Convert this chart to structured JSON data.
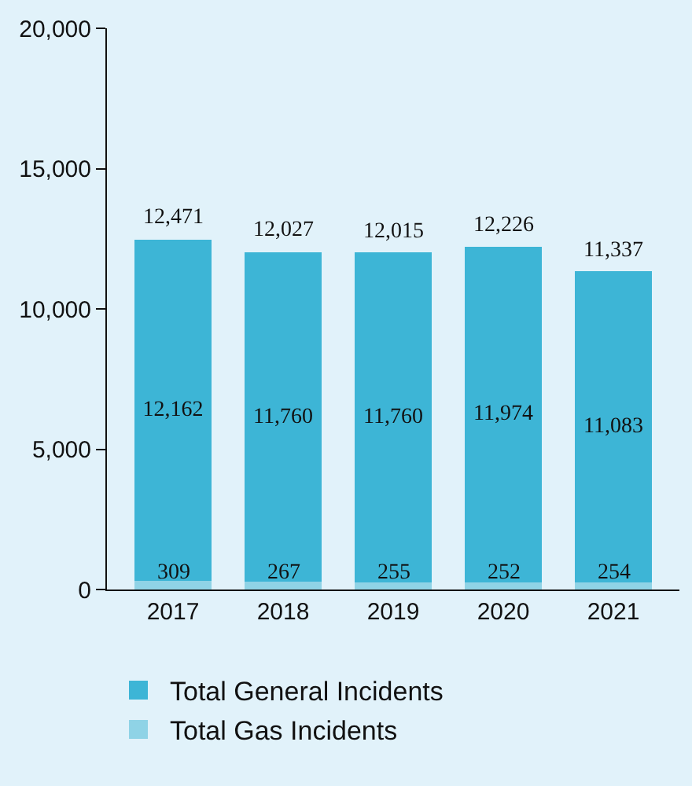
{
  "chart_data": {
    "type": "bar",
    "stacked": true,
    "categories": [
      "2017",
      "2018",
      "2019",
      "2020",
      "2021"
    ],
    "series": [
      {
        "name": "Total Gas Incidents",
        "color": "#8fd3e6",
        "values": [
          309,
          267,
          255,
          252,
          254
        ],
        "value_labels": [
          "309",
          "267",
          "255",
          "252",
          "254"
        ]
      },
      {
        "name": "Total General Incidents",
        "color": "#3db5d6",
        "values": [
          12162,
          11760,
          11760,
          11974,
          11083
        ],
        "value_labels": [
          "12,162",
          "11,760",
          "11,760",
          "11,974",
          "11,083"
        ]
      }
    ],
    "totals": [
      "12,471",
      "12,027",
      "12,015",
      "12,226",
      "11,337"
    ],
    "ylim": [
      0,
      20000
    ],
    "yticks": [
      {
        "value": 0,
        "label": "0"
      },
      {
        "value": 5000,
        "label": "5,000"
      },
      {
        "value": 10000,
        "label": "10,000"
      },
      {
        "value": 15000,
        "label": "15,000"
      },
      {
        "value": 20000,
        "label": "20,000"
      }
    ],
    "grid": false,
    "legend": "bottom"
  }
}
